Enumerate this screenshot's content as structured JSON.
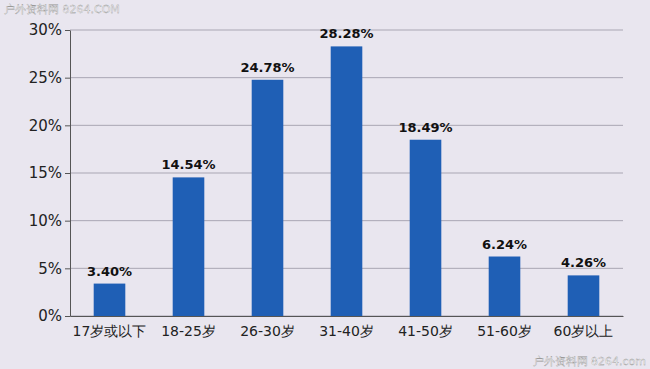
{
  "chart_data": {
    "type": "bar",
    "categories": [
      "17岁或以下",
      "18-25岁",
      "26-30岁",
      "31-40岁",
      "41-50岁",
      "51-60岁",
      "60岁以上"
    ],
    "values": [
      3.4,
      14.54,
      24.78,
      28.28,
      18.49,
      6.24,
      4.26
    ],
    "value_labels": [
      "3.40%",
      "14.54%",
      "24.78%",
      "28.28%",
      "18.49%",
      "6.24%",
      "4.26%"
    ],
    "data_labels": true,
    "color": "#1f5fb5",
    "ylim": [
      0,
      30
    ],
    "yticks": [
      {
        "value": 0,
        "label": "0%"
      },
      {
        "value": 5,
        "label": "5%"
      },
      {
        "value": 10,
        "label": "10%"
      },
      {
        "value": 15,
        "label": "15%"
      },
      {
        "value": 20,
        "label": "20%"
      },
      {
        "value": 25,
        "label": "25%"
      },
      {
        "value": 30,
        "label": "30%"
      }
    ],
    "grid": true,
    "annotations": [
      "户外资料网 8264.COM",
      "户外资料网 8264.com"
    ]
  }
}
